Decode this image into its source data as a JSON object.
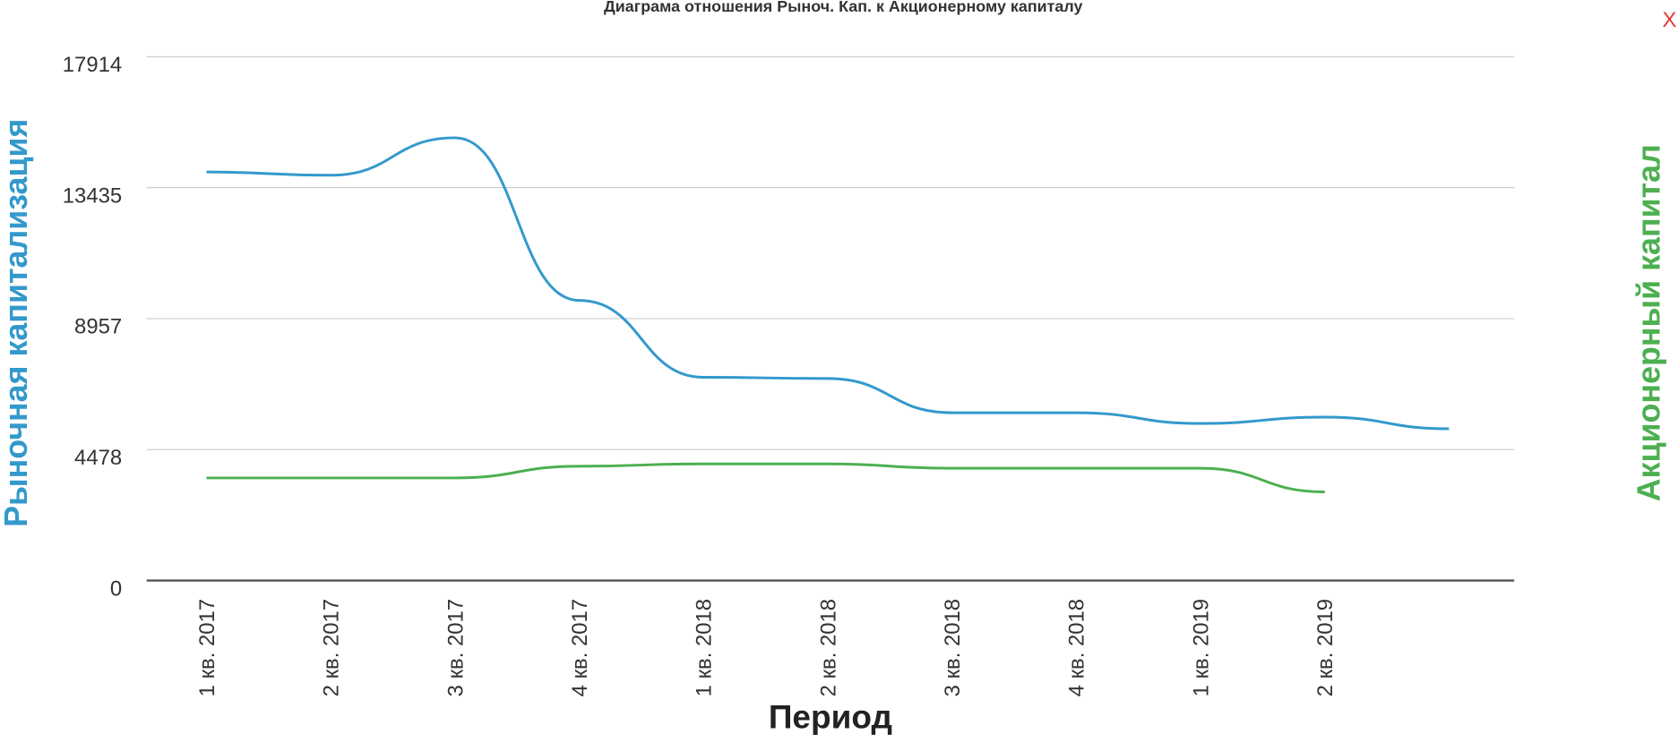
{
  "chart_data": {
    "type": "line",
    "title": "Диаграма отношения Рыноч. Кап. к Акционерному капиталу",
    "ylabel": "Рыночная капитализация",
    "y2label": "Акционерный капитал",
    "xlabel": "Период",
    "close": "X",
    "categories": [
      "1 кв. 2017",
      "2 кв. 2017",
      "3 кв. 2017",
      "4 кв. 2017",
      "1 кв. 2018",
      "2 кв. 2018",
      "3 кв. 2018",
      "4 кв. 2018",
      "1 кв. 2019",
      "2 кв. 2019",
      null
    ],
    "series": [
      {
        "color": "#3399cc",
        "values": [
          13970,
          13860,
          15140,
          9580,
          6950,
          6910,
          5740,
          5740,
          5370,
          5590,
          5190
        ]
      },
      {
        "color": "#4caf50",
        "values": [
          3510,
          3510,
          3510,
          3910,
          3990,
          3990,
          3840,
          3840,
          3840,
          3030,
          null
        ]
      }
    ],
    "ylim": [
      0,
      17914
    ],
    "yticks": [
      0,
      4478,
      8957,
      13435,
      17914
    ],
    "grid": true
  }
}
